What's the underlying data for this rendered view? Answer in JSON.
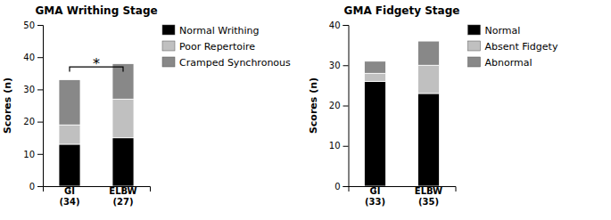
{
  "chart_data": [
    {
      "type": "bar",
      "stacked": true,
      "title": "GMA Writhing Stage",
      "y_label": "Scores (n)",
      "categories": [
        "GI\n(34)",
        "ELBW\n(27)"
      ],
      "series": [
        {
          "name": "Normal Writhing",
          "color": "#000000",
          "values": [
            13,
            15
          ]
        },
        {
          "name": "Poor Repertoire",
          "color": "#c0c0c0",
          "values": [
            6,
            12
          ]
        },
        {
          "name": "Cramped Synchronous",
          "color": "#888888",
          "values": [
            14,
            11
          ]
        }
      ],
      "ylim": [
        0,
        50
      ],
      "yticks": [
        0,
        10,
        20,
        30,
        40,
        50
      ],
      "grid": false,
      "legend": "right",
      "annotations": [
        {
          "text": "*",
          "x0": 0,
          "x1": 1,
          "y": 35.5,
          "height": 1.5
        }
      ]
    },
    {
      "type": "bar",
      "stacked": true,
      "title": "GMA Fidgety Stage",
      "y_label": "Scores (n)",
      "categories": [
        "GI\n(33)",
        "ELBW\n(35)"
      ],
      "series": [
        {
          "name": "Normal",
          "color": "#000000",
          "values": [
            26,
            23
          ]
        },
        {
          "name": "Absent Fidgety",
          "color": "#c0c0c0",
          "values": [
            2,
            7
          ]
        },
        {
          "name": "Abnormal",
          "color": "#888888",
          "values": [
            3,
            6
          ]
        }
      ],
      "ylim": [
        0,
        40
      ],
      "yticks": [
        0,
        10,
        20,
        30,
        40
      ],
      "grid": false,
      "legend": "right"
    }
  ]
}
